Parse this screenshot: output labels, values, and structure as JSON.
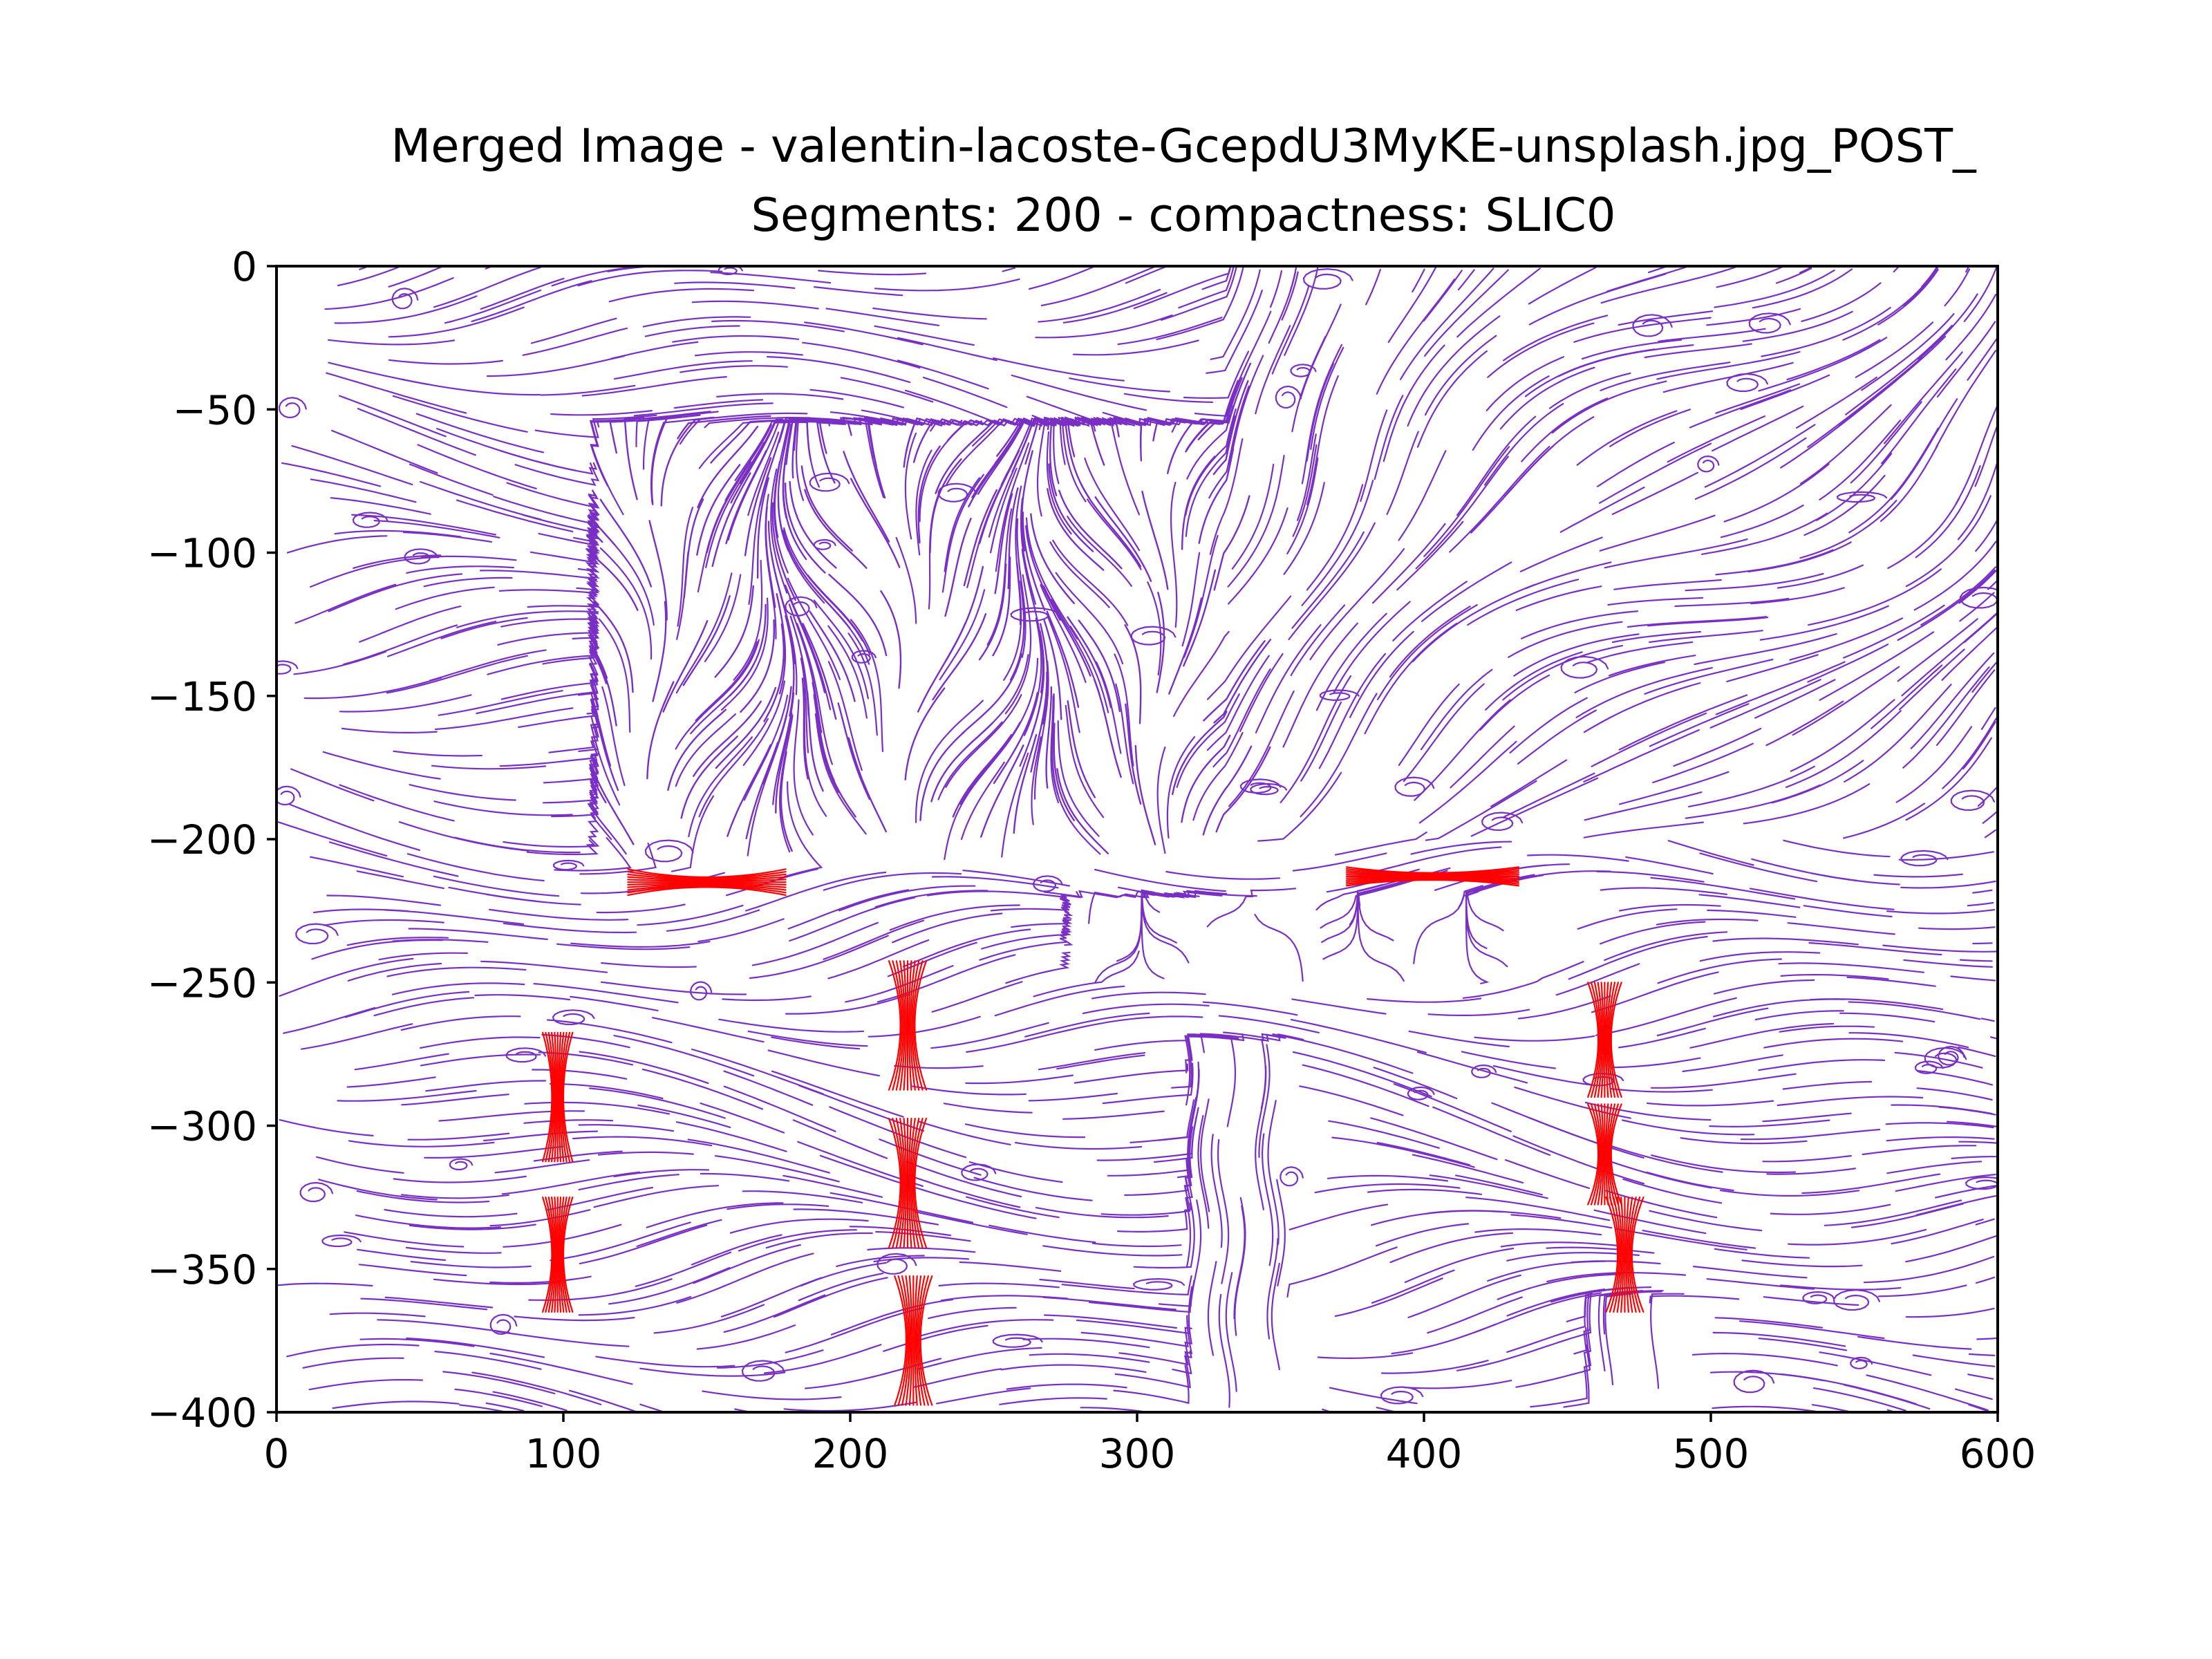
{
  "chart_data": {
    "type": "streamplot",
    "title": "Merged Image - valentin-lacoste-GcepdU3MyKE-unsplash.jpg_POST_",
    "subtitle": "Segments: 200 - compactness: SLIC0",
    "xlim": [
      0,
      600
    ],
    "ylim": [
      -400,
      0
    ],
    "x_ticks": [
      0,
      100,
      200,
      300,
      400,
      500,
      600
    ],
    "y_ticks": [
      0,
      -50,
      -100,
      -150,
      -200,
      -250,
      -300,
      -350,
      -400
    ],
    "x_tick_labels": [
      "0",
      "100",
      "200",
      "300",
      "400",
      "500",
      "600"
    ],
    "y_tick_labels": [
      "0",
      "−50",
      "−100",
      "−150",
      "−200",
      "−250",
      "−300",
      "−350",
      "−400"
    ],
    "grid": false,
    "series": [
      {
        "color": "#7a2fc4",
        "role": "background streamlines",
        "regions": [
          {
            "x": [
              0,
              600
            ],
            "y": [
              -400,
              0
            ],
            "pattern": "mostly horizontal with eddies"
          },
          {
            "x": [
              110,
              330
            ],
            "y": [
              -210,
              -55
            ],
            "pattern": "mostly vertical, dense"
          },
          {
            "x": [
              330,
              600
            ],
            "y": [
              -200,
              0
            ],
            "pattern": "diagonal to vertical"
          },
          {
            "x": [
              275,
              440
            ],
            "y": [
              -250,
              -220
            ],
            "pattern": "vertical loops"
          }
        ]
      },
      {
        "color": "#ff0000",
        "role": "highlighted streamlines",
        "clusters": [
          {
            "x": 150,
            "y": -215,
            "orientation": "horizontal",
            "width": 55,
            "height": 14
          },
          {
            "x": 403,
            "y": -213,
            "orientation": "horizontal",
            "width": 60,
            "height": 10
          },
          {
            "x": 98,
            "y": -290,
            "orientation": "vertical",
            "width": 16,
            "height": 45
          },
          {
            "x": 98,
            "y": -345,
            "orientation": "vertical",
            "width": 16,
            "height": 40
          },
          {
            "x": 220,
            "y": -265,
            "orientation": "vertical",
            "width": 20,
            "height": 45
          },
          {
            "x": 220,
            "y": -320,
            "orientation": "vertical",
            "width": 20,
            "height": 45
          },
          {
            "x": 222,
            "y": -375,
            "orientation": "vertical",
            "width": 20,
            "height": 45
          },
          {
            "x": 463,
            "y": -270,
            "orientation": "vertical",
            "width": 18,
            "height": 40
          },
          {
            "x": 463,
            "y": -310,
            "orientation": "vertical",
            "width": 18,
            "height": 35
          },
          {
            "x": 470,
            "y": -345,
            "orientation": "vertical",
            "width": 20,
            "height": 40
          }
        ]
      }
    ]
  }
}
